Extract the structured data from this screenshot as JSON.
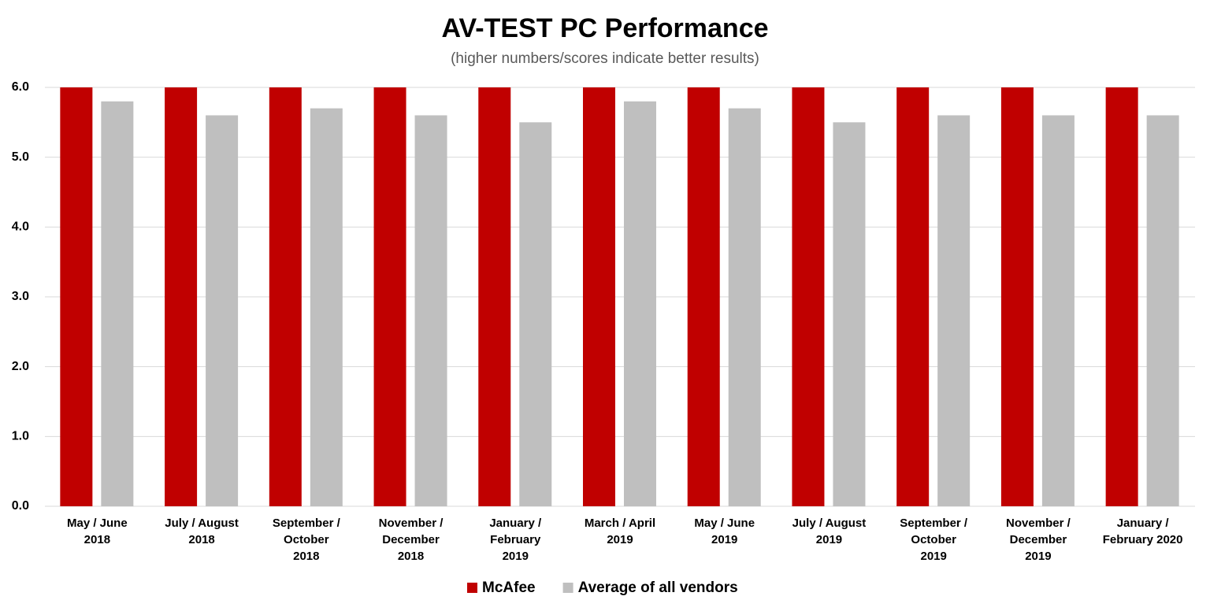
{
  "chart_data": {
    "type": "bar",
    "title": "AV-TEST PC Performance",
    "subtitle": "(higher numbers/scores  indicate better results)",
    "categories": [
      "May / June\n2018",
      "July / August\n2018",
      "September /\nOctober\n2018",
      "November /\nDecember\n2018",
      "January /\nFebruary\n2019",
      "March / April\n2019",
      "May / June\n2019",
      "July / August\n2019",
      "September /\nOctober\n2019",
      "November /\nDecember\n2019",
      "January /\nFebruary 2020"
    ],
    "series": [
      {
        "name": "McAfee",
        "color": "#c00000",
        "values": [
          6.0,
          6.0,
          6.0,
          6.0,
          6.0,
          6.0,
          6.0,
          6.0,
          6.0,
          6.0,
          6.0
        ]
      },
      {
        "name": "Average of all vendors",
        "color": "#bfbfbf",
        "values": [
          5.8,
          5.6,
          5.7,
          5.6,
          5.5,
          5.8,
          5.7,
          5.5,
          5.6,
          5.6,
          5.6
        ]
      }
    ],
    "ylim": [
      0,
      6
    ],
    "yticks": [
      {
        "value": 0,
        "label": "0.0"
      },
      {
        "value": 1,
        "label": "1.0"
      },
      {
        "value": 2,
        "label": "2.0"
      },
      {
        "value": 3,
        "label": "3.0"
      },
      {
        "value": 4,
        "label": "4.0"
      },
      {
        "value": 5,
        "label": "5.0"
      },
      {
        "value": 6,
        "label": "6.0"
      }
    ],
    "grid": true,
    "legend": "bottom"
  }
}
